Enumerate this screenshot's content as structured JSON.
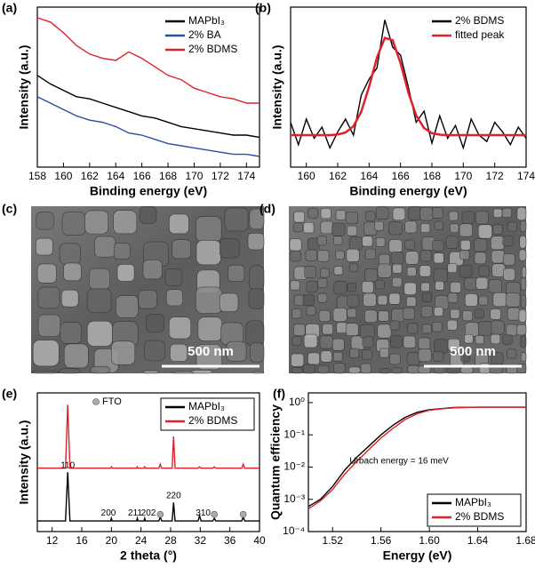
{
  "chart_data": [
    {
      "type": "line",
      "panel_label": "(a)",
      "x_label": "Binding energy (eV)",
      "y_label": "Intensity (a.u.)",
      "x": [
        158,
        159,
        160,
        161,
        162,
        163,
        164,
        165,
        166,
        167,
        168,
        169,
        170,
        171,
        172,
        173,
        174,
        175
      ],
      "xlim": [
        158,
        175
      ],
      "xticks": [
        158,
        160,
        162,
        164,
        166,
        168,
        170,
        172,
        174
      ],
      "ylim": [
        25,
        100
      ],
      "legend": "upper right",
      "series": [
        {
          "name": "MAPbI₃",
          "color": "#000000",
          "values": [
            68,
            64,
            61,
            58,
            57,
            55,
            53,
            51,
            49,
            48,
            46,
            44,
            43,
            42,
            41,
            40,
            40,
            39
          ]
        },
        {
          "name": "2% BA",
          "color": "#2a4fa0",
          "values": [
            58,
            55,
            52,
            49,
            47,
            46,
            44,
            41,
            40,
            38,
            36,
            35,
            34,
            33,
            32,
            31,
            31,
            30
          ]
        },
        {
          "name": "2% BDMS",
          "color": "#e0202a",
          "values": [
            95,
            93,
            88,
            82,
            78,
            76,
            75,
            79,
            76,
            72,
            68,
            66,
            62,
            60,
            58,
            57,
            55,
            55
          ]
        }
      ]
    },
    {
      "type": "line",
      "panel_label": "(b)",
      "x_label": "Binding energy (eV)",
      "y_label": "Intensity (a.u.)",
      "x": [
        159,
        159.5,
        160,
        160.5,
        161,
        161.5,
        162,
        162.5,
        163,
        163.5,
        164,
        164.5,
        165,
        165.5,
        166,
        166.5,
        167,
        167.5,
        168,
        168.5,
        169,
        169.5,
        170,
        170.5,
        171,
        171.5,
        172,
        172.5,
        173,
        173.5,
        174
      ],
      "xlim": [
        159,
        174
      ],
      "xticks": [
        160,
        162,
        164,
        166,
        168,
        170,
        172,
        174
      ],
      "ylim": [
        0,
        100
      ],
      "legend": "upper right",
      "series": [
        {
          "name": "2% BDMS",
          "color": "#000000",
          "values": [
            28,
            14,
            30,
            18,
            25,
            12,
            22,
            30,
            20,
            45,
            55,
            62,
            92,
            75,
            70,
            50,
            28,
            35,
            15,
            32,
            18,
            26,
            12,
            30,
            20,
            16,
            28,
            22,
            14,
            25,
            18
          ]
        },
        {
          "name": "fitted peak",
          "color": "#e0202a",
          "values": [
            20,
            20,
            20,
            20,
            20,
            20,
            20.4,
            21.6,
            25.5,
            34.6,
            50.2,
            68.5,
            80.8,
            79.3,
            65,
            46.6,
            32.3,
            24.4,
            21.2,
            20.3,
            20,
            20,
            20,
            20,
            20,
            20,
            20,
            20,
            20,
            20,
            20
          ]
        }
      ]
    },
    {
      "type": "line",
      "panel_label": "(e)",
      "x_label": "2 theta (°)",
      "y_label": "Intensity (a.u.)",
      "x": [
        10,
        13.8,
        14.1,
        14.4,
        19.9,
        20,
        20.1,
        23.4,
        23.5,
        23.6,
        24.4,
        24.5,
        24.6,
        26.4,
        26.6,
        26.8,
        28.2,
        28.4,
        28.6,
        31.7,
        31.9,
        32.1,
        33.7,
        33.9,
        34.1,
        37.6,
        37.8,
        38,
        40
      ],
      "xlim": [
        10,
        40
      ],
      "xticks": [
        12,
        16,
        20,
        24,
        28,
        32,
        36,
        40
      ],
      "ylim": [
        0,
        105
      ],
      "legend": "upper right",
      "legend_frame": true,
      "series": [
        {
          "name": "MAPbI₃",
          "color": "#000000",
          "values": [
            8,
            8,
            45,
            8,
            8,
            10,
            8,
            8,
            10,
            8,
            8,
            10,
            8,
            8,
            11,
            8,
            8,
            22,
            8,
            8,
            12,
            8,
            8,
            10,
            8,
            8,
            11,
            8,
            8
          ]
        },
        {
          "name": "2% BDMS",
          "color": "#e0202a",
          "values": [
            48,
            48,
            96,
            48,
            48,
            49,
            48,
            48,
            49,
            48,
            48,
            49,
            48,
            48,
            51,
            48,
            48,
            72,
            48,
            48,
            49,
            48,
            48,
            49,
            48,
            48,
            51,
            48,
            48
          ]
        }
      ],
      "annotations": [
        {
          "text": "110",
          "x": 14.1,
          "y": 50
        },
        {
          "text": "200",
          "x": 19.6,
          "y": 14
        },
        {
          "text": "211",
          "x": 23.2,
          "y": 14
        },
        {
          "text": "202",
          "x": 25.0,
          "y": 14
        },
        {
          "text": "220",
          "x": 28.4,
          "y": 27
        },
        {
          "text": "310",
          "x": 32.4,
          "y": 14
        }
      ],
      "markers": {
        "name": "FTO",
        "x": [
          26.6,
          33.9,
          37.8
        ],
        "y": [
          13,
          13,
          13
        ],
        "color": "#aaaaaa"
      }
    },
    {
      "type": "line",
      "panel_label": "(f)",
      "x_label": "Energy (eV)",
      "y_label": "Quantum efficiency",
      "log_y": true,
      "x": [
        1.5,
        1.51,
        1.52,
        1.53,
        1.54,
        1.55,
        1.56,
        1.57,
        1.58,
        1.59,
        1.6,
        1.61,
        1.62,
        1.64,
        1.66,
        1.68
      ],
      "xlim": [
        1.5,
        1.68
      ],
      "xticks": [
        1.52,
        1.56,
        {
          "value": 1.6,
          "label": "1.60"
        },
        1.64,
        1.68
      ],
      "ylim": [
        0.0001,
        2
      ],
      "yticks": [
        {
          "value": 0.0001,
          "label": "10⁻⁴"
        },
        {
          "value": 0.001,
          "label": "10⁻³"
        },
        {
          "value": 0.01,
          "label": "10⁻²"
        },
        {
          "value": 0.1,
          "label": "10⁻¹"
        },
        {
          "value": 1,
          "label": "10⁰"
        }
      ],
      "legend": "lower right",
      "legend_frame": true,
      "series": [
        {
          "name": "MAPbI₃",
          "color": "#000000",
          "values": [
            0.0006,
            0.001,
            0.0025,
            0.008,
            0.02,
            0.045,
            0.1,
            0.2,
            0.35,
            0.5,
            0.6,
            0.65,
            0.7,
            0.72,
            0.72,
            0.72
          ]
        },
        {
          "name": "2% BDMS",
          "color": "#e0202a",
          "values": [
            0.0005,
            0.0009,
            0.002,
            0.006,
            0.015,
            0.035,
            0.08,
            0.16,
            0.3,
            0.45,
            0.58,
            0.64,
            0.69,
            0.72,
            0.72,
            0.72
          ]
        }
      ],
      "annotations": [
        {
          "text": "Urbach energy = 16 meV",
          "x": 1.575,
          "y": 0.015
        }
      ]
    }
  ],
  "images": [
    {
      "panel_label": "(c)",
      "scale_bar": "500 nm"
    },
    {
      "panel_label": "(d)",
      "scale_bar": "500 nm"
    }
  ]
}
